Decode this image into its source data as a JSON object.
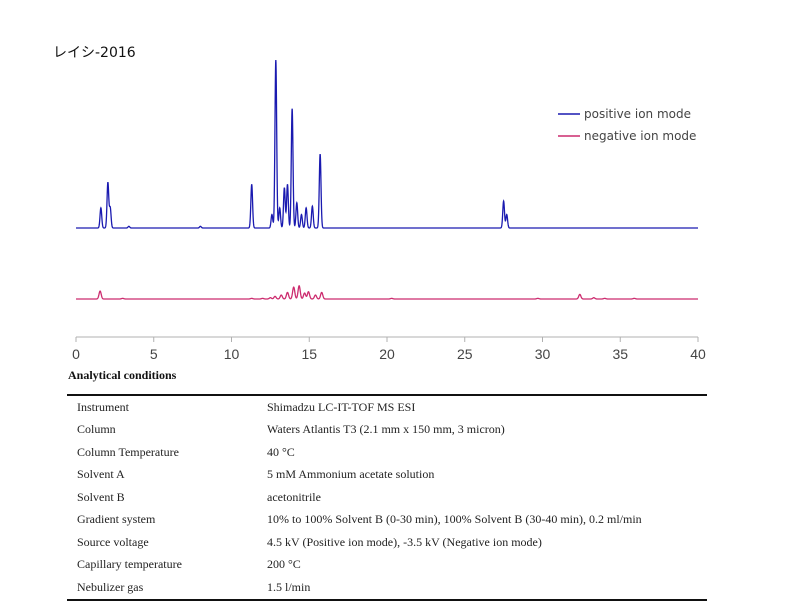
{
  "title": "レイシ-2016",
  "colors": {
    "positive": "#1a1ab0",
    "negative": "#cc2b6e",
    "axis": "#b0b0b0"
  },
  "chart_data": {
    "type": "line",
    "title": "レイシ-2016",
    "xlabel": "",
    "ylabel": "",
    "xlim": [
      0,
      40
    ],
    "xticks": [
      "0",
      "5",
      "10",
      "15",
      "20",
      "25",
      "30",
      "35",
      "40"
    ],
    "legend_position": "top-right",
    "series": [
      {
        "name": "positive ion mode",
        "color": "#1a1ab0",
        "peaks": [
          [
            1.6,
            12
          ],
          [
            2.05,
            27
          ],
          [
            2.2,
            12
          ],
          [
            3.4,
            1
          ],
          [
            8.0,
            1
          ],
          [
            11.3,
            26
          ],
          [
            12.6,
            8
          ],
          [
            12.85,
            100
          ],
          [
            13.1,
            12
          ],
          [
            13.4,
            24
          ],
          [
            13.6,
            26
          ],
          [
            13.9,
            71
          ],
          [
            14.2,
            15
          ],
          [
            14.5,
            8
          ],
          [
            14.8,
            12
          ],
          [
            15.2,
            13
          ],
          [
            15.7,
            44
          ],
          [
            27.5,
            16
          ],
          [
            27.7,
            8
          ]
        ]
      },
      {
        "name": "negative ion mode",
        "color": "#cc2b6e",
        "peaks": [
          [
            1.55,
            12
          ],
          [
            3.0,
            1
          ],
          [
            11.3,
            1
          ],
          [
            12.0,
            1
          ],
          [
            12.5,
            2
          ],
          [
            12.8,
            4
          ],
          [
            13.2,
            6
          ],
          [
            13.6,
            10
          ],
          [
            14.0,
            18
          ],
          [
            14.35,
            20
          ],
          [
            14.7,
            9
          ],
          [
            14.95,
            11
          ],
          [
            15.4,
            6
          ],
          [
            15.8,
            10
          ],
          [
            20.3,
            1
          ],
          [
            29.7,
            1
          ],
          [
            32.4,
            7
          ],
          [
            33.3,
            2
          ],
          [
            34.0,
            1
          ],
          [
            35.9,
            1
          ]
        ]
      }
    ]
  },
  "conditions": {
    "heading": "Analytical conditions",
    "rows": [
      {
        "label": "Instrument",
        "value": "Shimadzu LC-IT-TOF MS ESI"
      },
      {
        "label": "Column",
        "value": "Waters Atlantis T3 (2.1 mm x 150 mm, 3 micron)"
      },
      {
        "label": "Column Temperature",
        "value": "40 °C"
      },
      {
        "label": "Solvent A",
        "value": "5 mM Ammonium acetate solution"
      },
      {
        "label": "Solvent B",
        "value": "acetonitrile"
      },
      {
        "label": "Gradient system",
        "value": "10% to 100% Solvent B (0-30 min), 100% Solvent B (30-40 min), 0.2 ml/min"
      },
      {
        "label": "Source voltage",
        "value": "4.5 kV (Positive ion mode), -3.5 kV (Negative ion mode)"
      },
      {
        "label": "Capillary temperature",
        "value": "200 °C"
      },
      {
        "label": "Nebulizer gas",
        "value": "1.5 l/min"
      }
    ]
  }
}
